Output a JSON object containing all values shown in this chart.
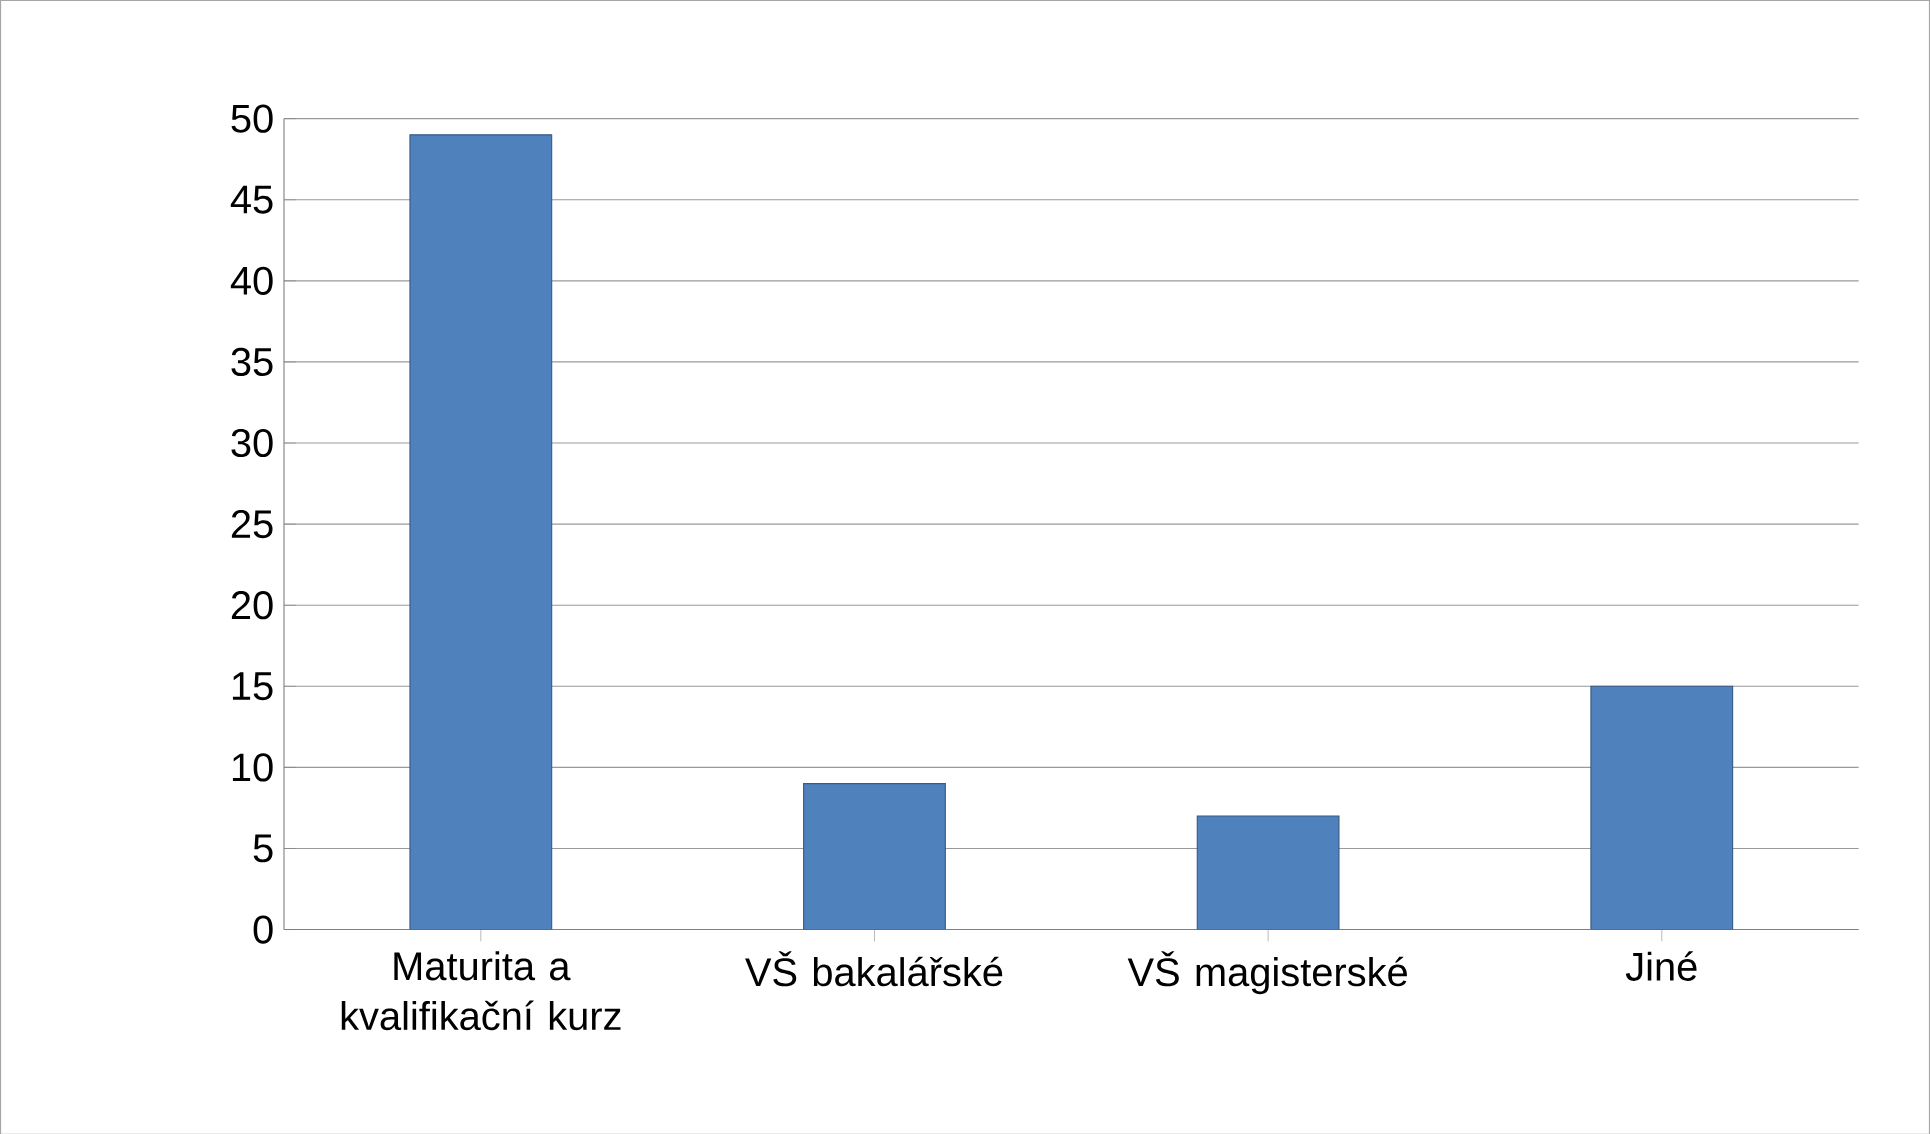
{
  "chart_data": {
    "type": "bar",
    "categories": [
      "Maturita a kvalifikační kurz",
      "VŠ bakalářské",
      "VŠ magisterské",
      "Jiné"
    ],
    "values": [
      49,
      9,
      7,
      15
    ],
    "color": "#4f81bd",
    "ylim": [
      0,
      50
    ],
    "yticks": [
      0,
      5,
      10,
      15,
      20,
      25,
      30,
      35,
      40,
      45,
      50
    ],
    "grid": "y"
  }
}
